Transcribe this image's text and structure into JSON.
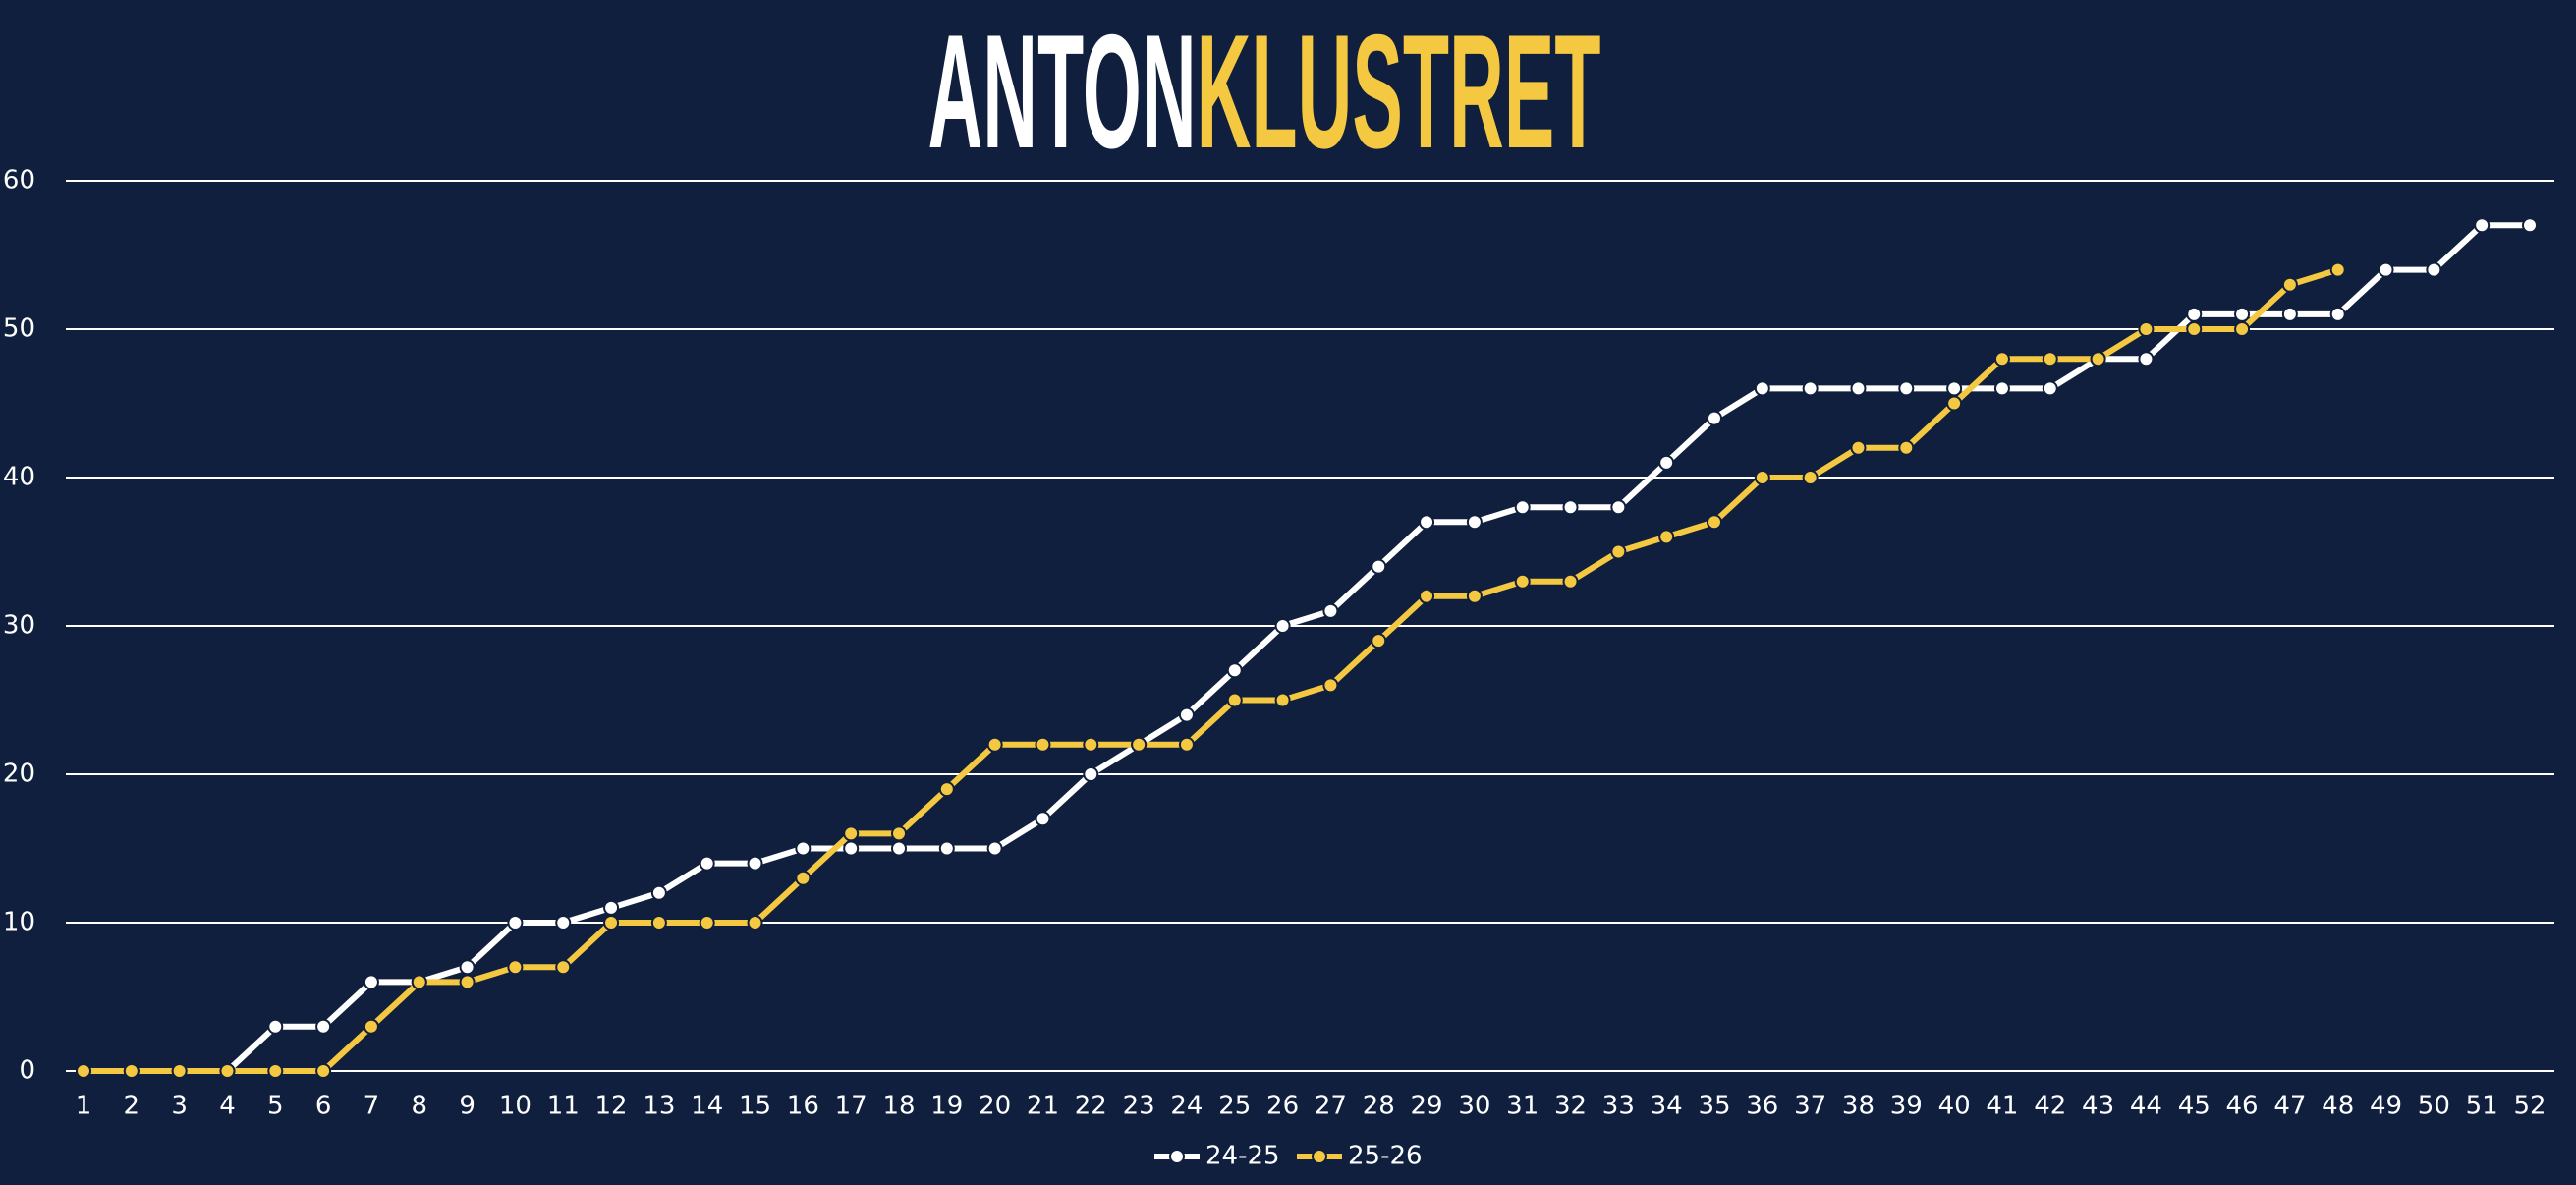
{
  "chart_data": {
    "type": "line",
    "title_parts": [
      "ANTON",
      "KLUSTRET"
    ],
    "title_colors": [
      "#ffffff",
      "#f5c842"
    ],
    "categories": [
      "1",
      "2",
      "3",
      "4",
      "5",
      "6",
      "7",
      "8",
      "9",
      "10",
      "11",
      "12",
      "13",
      "14",
      "15",
      "16",
      "17",
      "18",
      "19",
      "20",
      "21",
      "22",
      "23",
      "24",
      "25",
      "26",
      "27",
      "28",
      "29",
      "30",
      "31",
      "32",
      "33",
      "34",
      "35",
      "36",
      "37",
      "38",
      "39",
      "40",
      "41",
      "42",
      "43",
      "44",
      "45",
      "46",
      "47",
      "48",
      "49",
      "50",
      "51",
      "52"
    ],
    "series": [
      {
        "name": "24-25",
        "color": "#ffffff",
        "values": [
          0,
          0,
          0,
          0,
          3,
          3,
          6,
          6,
          7,
          10,
          10,
          11,
          12,
          14,
          14,
          15,
          15,
          15,
          15,
          15,
          17,
          20,
          22,
          24,
          27,
          30,
          31,
          34,
          37,
          37,
          38,
          38,
          38,
          41,
          44,
          46,
          46,
          46,
          46,
          46,
          46,
          46,
          48,
          48,
          51,
          51,
          51,
          51,
          54,
          54,
          57,
          57
        ]
      },
      {
        "name": "25-26",
        "color": "#f5c842",
        "values": [
          0,
          0,
          0,
          0,
          0,
          0,
          3,
          6,
          6,
          7,
          7,
          10,
          10,
          10,
          10,
          13,
          16,
          16,
          19,
          22,
          22,
          22,
          22,
          22,
          25,
          25,
          26,
          29,
          32,
          32,
          33,
          33,
          35,
          36,
          37,
          40,
          40,
          42,
          42,
          45,
          48,
          48,
          48,
          50,
          50,
          50,
          53,
          54,
          null,
          null,
          null,
          null
        ]
      }
    ],
    "ylim": [
      0,
      60
    ],
    "yticks": [
      0,
      10,
      20,
      30,
      40,
      50,
      60
    ],
    "grid": true,
    "legend": "bottom"
  }
}
